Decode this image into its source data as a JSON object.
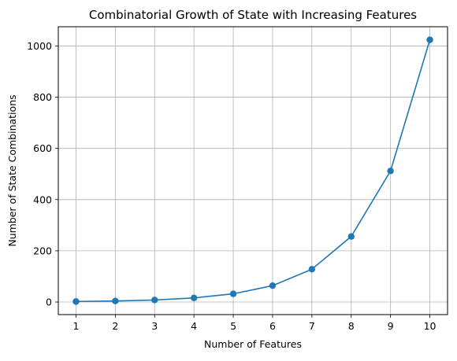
{
  "chart_data": {
    "type": "line",
    "title": "Combinatorial Growth of State with Increasing Features",
    "xlabel": "Number of Features",
    "ylabel": "Number of State Combinations",
    "x": [
      1,
      2,
      3,
      4,
      5,
      6,
      7,
      8,
      9,
      10
    ],
    "series": [
      {
        "values": [
          2,
          4,
          8,
          16,
          32,
          64,
          128,
          256,
          512,
          1024
        ]
      }
    ],
    "xlim": [
      0.55,
      10.45
    ],
    "ylim": [
      -49.1,
      1075.1
    ],
    "xticks": [
      1,
      2,
      3,
      4,
      5,
      6,
      7,
      8,
      9,
      10
    ],
    "yticks": [
      0,
      200,
      400,
      600,
      800,
      1000
    ],
    "grid": true,
    "marker": "circle",
    "line_color": "#1f77b4",
    "grid_color": "#b0b0b0"
  }
}
